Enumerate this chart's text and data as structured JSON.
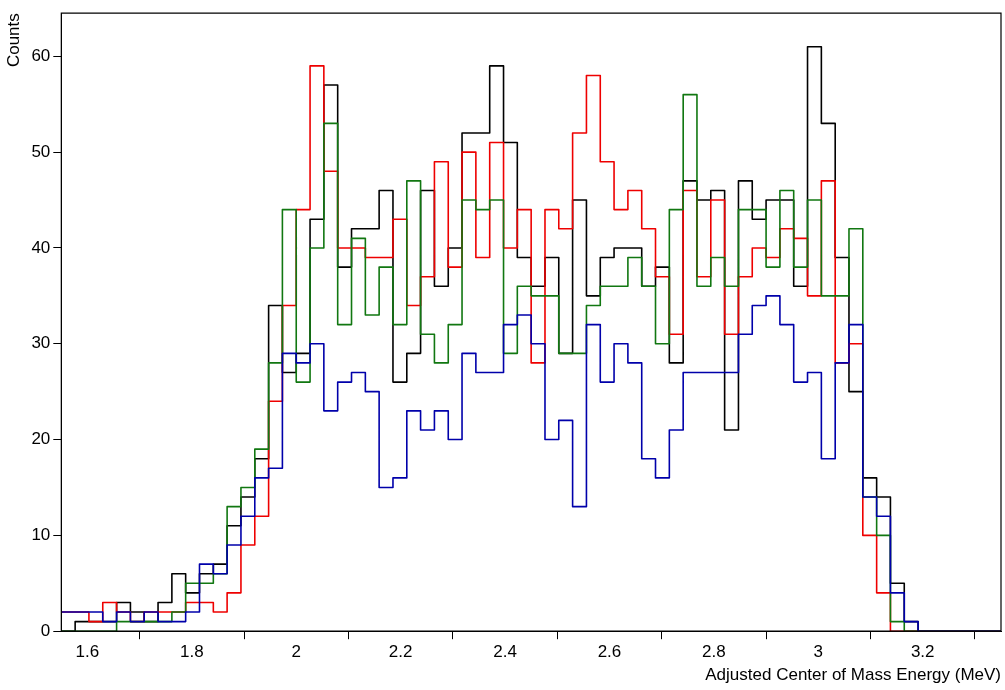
{
  "chart_data": {
    "type": "histogram",
    "xlabel": "Adjusted Center of Mass Energy (MeV)",
    "ylabel": "Counts",
    "bins": [
      1.55,
      1.5765,
      1.6029,
      1.6294,
      1.6559,
      1.6824,
      1.7088,
      1.7353,
      1.7618,
      1.7882,
      1.8147,
      1.8412,
      1.8676,
      1.8941,
      1.9206,
      1.9471,
      1.9735,
      2.0,
      2.0265,
      2.0529,
      2.0794,
      2.1059,
      2.1324,
      2.1588,
      2.1853,
      2.2118,
      2.2382,
      2.2647,
      2.2912,
      2.3176,
      2.3441,
      2.3706,
      2.3971,
      2.4235,
      2.45,
      2.4765,
      2.5029,
      2.5294,
      2.5559,
      2.5824,
      2.6088,
      2.6353,
      2.6618,
      2.6882,
      2.7147,
      2.7412,
      2.7676,
      2.7941,
      2.8206,
      2.8471,
      2.8735,
      2.9,
      2.9265,
      2.9529,
      2.9794,
      3.0059,
      3.0324,
      3.0588,
      3.0853,
      3.1118,
      3.1382,
      3.1647,
      3.1912,
      3.2176,
      3.2441,
      3.2706,
      3.2971,
      3.3235,
      3.35
    ],
    "series": [
      {
        "color": "#0000aa",
        "values": [
          2,
          2,
          2,
          1,
          2,
          1,
          2,
          1,
          1,
          2,
          7,
          6,
          9,
          12,
          16,
          17,
          29,
          28,
          30,
          23,
          26,
          27,
          25,
          15,
          16,
          23,
          21,
          23,
          20,
          29,
          27,
          27,
          32,
          33,
          30,
          20,
          22,
          13,
          32,
          26,
          30,
          28,
          18,
          16,
          21,
          27,
          27,
          27,
          27,
          31,
          34,
          35,
          32,
          26,
          27,
          18,
          28,
          32,
          14,
          12,
          4,
          1,
          0,
          0,
          0,
          0,
          0,
          0
        ]
      },
      {
        "color": "#117711",
        "values": [
          0,
          0,
          0,
          0,
          1,
          1,
          1,
          1,
          2,
          5,
          5,
          6,
          13,
          15,
          19,
          28,
          44,
          26,
          40,
          53,
          32,
          41,
          33,
          38,
          32,
          47,
          31,
          28,
          32,
          45,
          44,
          45,
          29,
          36,
          35,
          35,
          29,
          29,
          34,
          36,
          36,
          39,
          36,
          30,
          44,
          56,
          36,
          39,
          36,
          44,
          44,
          38,
          46,
          38,
          45,
          35,
          35,
          42,
          14,
          10,
          1,
          0,
          0,
          0,
          0,
          0,
          0,
          0
        ]
      },
      {
        "color": "#ee0000",
        "values": [
          2,
          2,
          1,
          3,
          2,
          1,
          2,
          2,
          2,
          3,
          3,
          2,
          4,
          9,
          12,
          24,
          34,
          44,
          59,
          48,
          40,
          40,
          39,
          39,
          43,
          34,
          37,
          49,
          38,
          50,
          39,
          51,
          40,
          44,
          28,
          44,
          42,
          52,
          58,
          49,
          44,
          46,
          42,
          37,
          31,
          46,
          37,
          45,
          31,
          37,
          40,
          39,
          42,
          41,
          35,
          47,
          28,
          30,
          10,
          4,
          0,
          0,
          0,
          0,
          0,
          0,
          0,
          0
        ]
      },
      {
        "color": "#000000",
        "values": [
          0,
          1,
          1,
          1,
          3,
          2,
          1,
          3,
          6,
          4,
          6,
          7,
          11,
          14,
          18,
          34,
          27,
          29,
          43,
          57,
          38,
          42,
          42,
          46,
          26,
          29,
          46,
          36,
          40,
          52,
          52,
          59,
          51,
          39,
          36,
          39,
          29,
          45,
          35,
          39,
          40,
          40,
          36,
          38,
          28,
          47,
          45,
          46,
          21,
          47,
          43,
          45,
          45,
          36,
          61,
          53,
          39,
          25,
          16,
          14,
          5,
          1,
          0,
          0,
          0,
          0,
          0,
          0
        ]
      }
    ],
    "xlim": [
      1.55,
      3.35
    ],
    "xticks": [
      1.6,
      1.8,
      2,
      2.2,
      2.4,
      2.6,
      2.8,
      3,
      3.2
    ],
    "ylim": [
      0,
      64.5
    ],
    "yticks": [
      0,
      10,
      20,
      30,
      40,
      50,
      60
    ],
    "legend": false
  }
}
